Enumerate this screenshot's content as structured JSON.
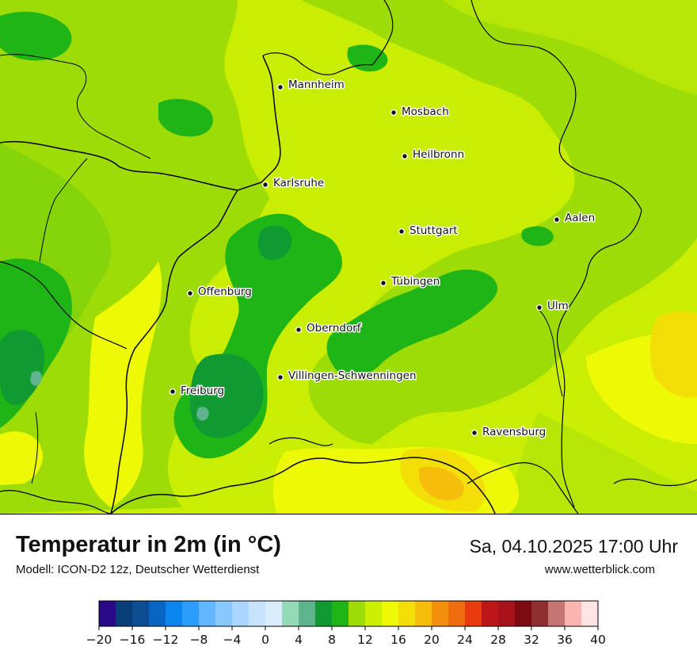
{
  "map": {
    "cities": [
      {
        "name": "Mannheim"
      },
      {
        "name": "Mosbach"
      },
      {
        "name": "Heilbronn"
      },
      {
        "name": "Karlsruhe"
      },
      {
        "name": "Aalen"
      },
      {
        "name": "Stuttgart"
      },
      {
        "name": "Tübingen"
      },
      {
        "name": "Offenburg"
      },
      {
        "name": "Ulm"
      },
      {
        "name": "Oberndorf"
      },
      {
        "name": "Villingen-Schwenningen"
      },
      {
        "name": "Freiburg"
      },
      {
        "name": "Ravensburg"
      }
    ]
  },
  "footer": {
    "title": "Temperatur in 2m (in °C)",
    "model": "Modell: ICON-D2 12z, Deutscher Wetterdienst",
    "datetime": "Sa, 04.10.2025 17:00 Uhr",
    "website": "www.wetterblick.com"
  },
  "legend": {
    "colors": [
      "#2b0a8a",
      "#083f7a",
      "#0a4d93",
      "#0a64c2",
      "#0b86ef",
      "#2c9dfb",
      "#62b6fd",
      "#88c8fe",
      "#aad6fe",
      "#c7e3fe",
      "#daedfd",
      "#96d9b8",
      "#5eb48c",
      "#0f9a32",
      "#20b516",
      "#9edc07",
      "#cdf002",
      "#eefa05",
      "#f3de07",
      "#f4be0a",
      "#f2900c",
      "#f16c0e",
      "#e93a0d",
      "#bc1616",
      "#a8121a",
      "#7c0a10",
      "#8f2f2f",
      "#c67575",
      "#fbb4b0",
      "#fde3e3"
    ],
    "ticks": [
      "−20",
      "−16",
      "−12",
      "−8",
      "−4",
      "0",
      "4",
      "8",
      "12",
      "16",
      "20",
      "24",
      "28",
      "32",
      "36",
      "40"
    ]
  }
}
